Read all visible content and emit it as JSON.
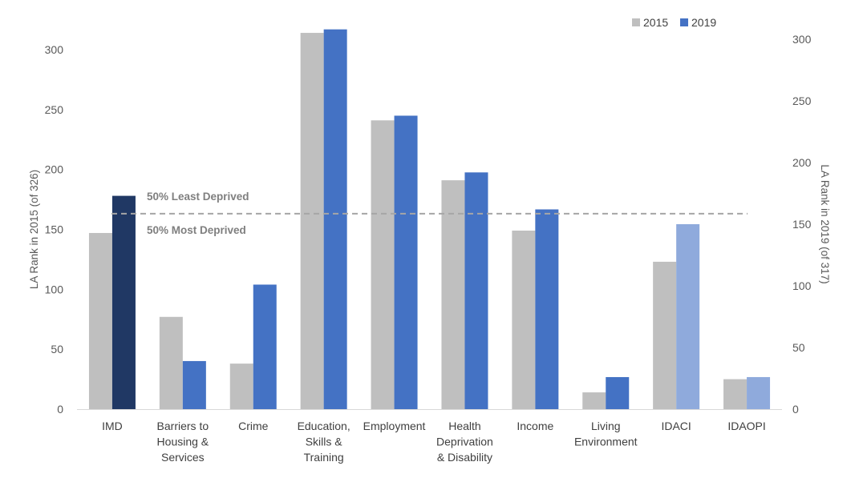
{
  "chart_data": {
    "type": "bar",
    "categories": [
      [
        "IMD"
      ],
      [
        "Barriers to",
        "Housing &",
        "Services"
      ],
      [
        "Crime"
      ],
      [
        "Education,",
        "Skills &",
        "Training"
      ],
      [
        "Employment"
      ],
      [
        "Health",
        "Deprivation",
        "& Disability"
      ],
      [
        "Income"
      ],
      [
        "Living",
        "Environment"
      ],
      [
        "IDACI"
      ],
      [
        "IDAOPI"
      ]
    ],
    "series": [
      {
        "name": "2015",
        "axis": "left",
        "color": "#bfbfbf",
        "values": [
          147,
          77,
          38,
          314,
          241,
          191,
          149,
          14,
          123,
          25
        ]
      },
      {
        "name": "2019",
        "axis": "right",
        "color": "#4472c4",
        "values": [
          173,
          39,
          101,
          308,
          238,
          192,
          162,
          26,
          150,
          26
        ],
        "point_colors": [
          "#203864",
          "#4472c4",
          "#4472c4",
          "#4472c4",
          "#4472c4",
          "#4472c4",
          "#4472c4",
          "#4472c4",
          "#8faadc",
          "#8faadc"
        ]
      }
    ],
    "ylabel": "LA Rank in 2015 (of 326)",
    "ylim": [
      0,
      326
    ],
    "yticks": [
      0,
      50,
      100,
      150,
      200,
      250,
      300
    ],
    "ylabel_right": "LA Rank in 2019 (of 317)",
    "ylim_right": [
      0,
      317
    ],
    "yticks_right": [
      0,
      50,
      100,
      150,
      200,
      250,
      300
    ],
    "reference_line": {
      "value": 158.5,
      "axis": "right",
      "style": "dashed",
      "color": "#a6a6a6",
      "label_above": "50% Least Deprived",
      "label_below": "50% Most Deprived"
    },
    "legend_position": "top-right",
    "grid": false
  }
}
